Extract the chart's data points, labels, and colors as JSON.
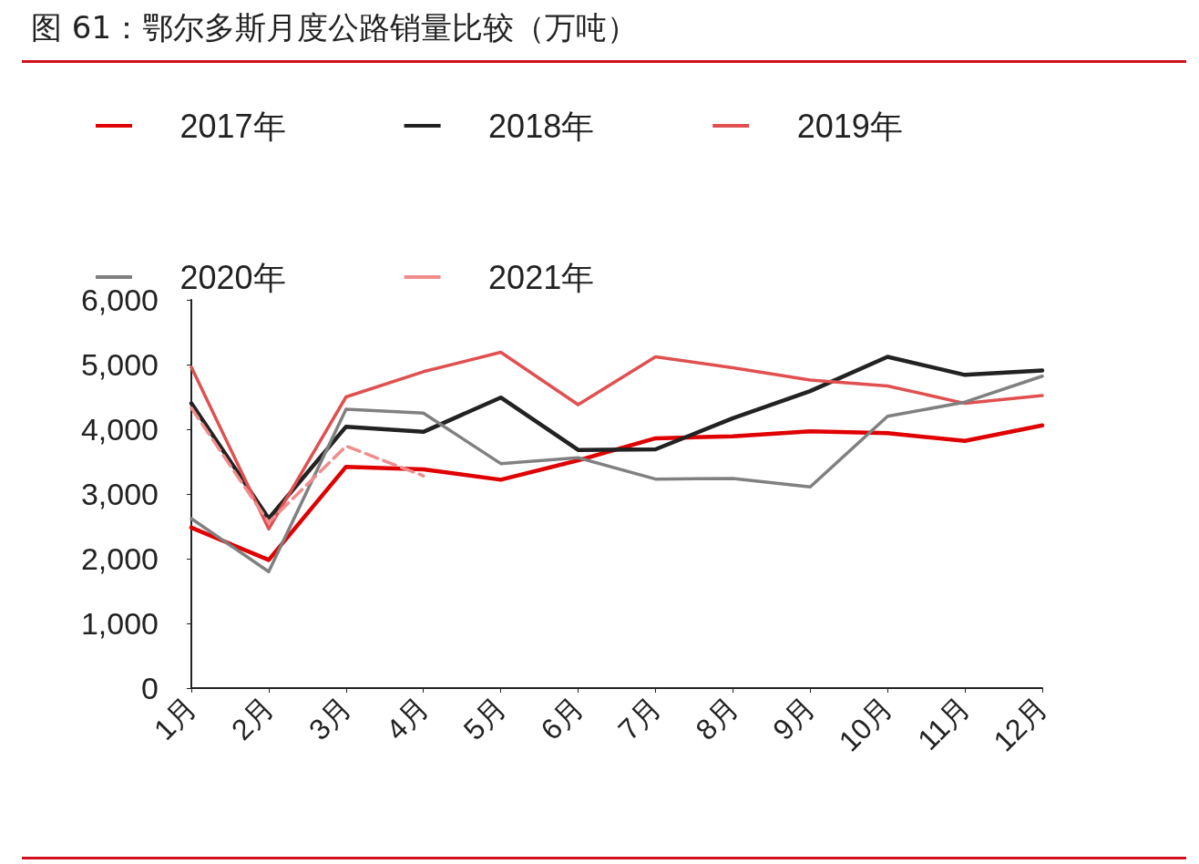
{
  "chart_data": {
    "type": "line",
    "title": "图 61：鄂尔多斯月度公路销量比较（万吨）",
    "categories": [
      "1月",
      "2月",
      "3月",
      "4月",
      "5月",
      "6月",
      "7月",
      "8月",
      "9月",
      "10月",
      "11月",
      "12月"
    ],
    "series": [
      {
        "name": "2017年",
        "color": "#e00000",
        "values": [
          2480,
          1980,
          3420,
          3380,
          3220,
          3520,
          3860,
          3890,
          3970,
          3940,
          3820,
          4060
        ]
      },
      {
        "name": "2018年",
        "color": "#222222",
        "values": [
          4400,
          2620,
          4040,
          3960,
          4490,
          3680,
          3690,
          4170,
          4590,
          5120,
          4840,
          4910
        ]
      },
      {
        "name": "2019年",
        "color": "#e05050",
        "values": [
          4960,
          2460,
          4500,
          4890,
          5190,
          4380,
          5120,
          4950,
          4760,
          4670,
          4400,
          4520
        ]
      },
      {
        "name": "2020年",
        "color": "#808080",
        "values": [
          2620,
          1800,
          4310,
          4250,
          3470,
          3560,
          3230,
          3240,
          3110,
          4200,
          4420,
          4820
        ]
      },
      {
        "name": "2021年",
        "color": "#f08c8c",
        "line_style": "dashed",
        "values": [
          4330,
          2560,
          3740,
          3280,
          null,
          null,
          null,
          null,
          null,
          null,
          null,
          null
        ]
      }
    ],
    "ylim": [
      0,
      6000
    ],
    "yticks": [
      0,
      {
        "value": 1000,
        "label": "1,000"
      },
      {
        "value": 2000,
        "label": "2,000"
      },
      {
        "value": 3000,
        "label": "3,000"
      },
      {
        "value": 4000,
        "label": "4,000"
      },
      {
        "value": 5000,
        "label": "5,000"
      },
      {
        "value": 6000,
        "label": "6,000"
      }
    ],
    "grid": false,
    "legend": "top",
    "marker": "none",
    "line_style": "solid"
  }
}
